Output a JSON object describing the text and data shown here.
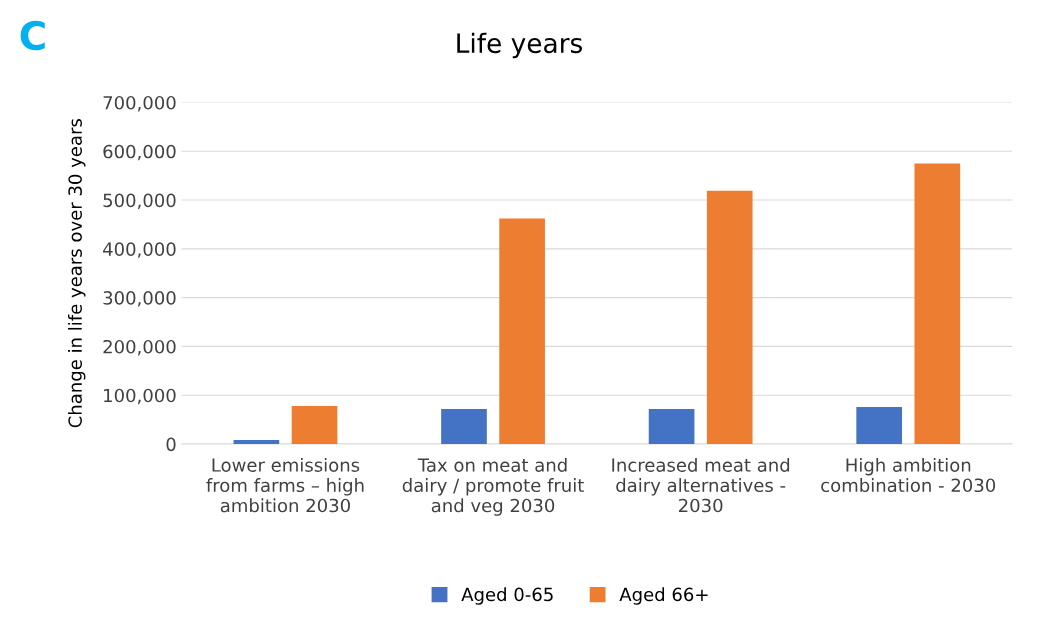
{
  "chart_data": {
    "type": "bar",
    "title": "Life years",
    "ylabel": "Change in life years over 30 years",
    "annotations": [
      "C"
    ],
    "categories": [
      "Lower emissions\nfrom farms – high\nambition 2030",
      "Tax on meat and\ndairy / promote fruit\nand veg 2030",
      "Increased meat and\ndairy alternatives -\n2030",
      "High ambition\ncombination - 2030"
    ],
    "series": [
      {
        "name": "Aged 0-65",
        "color": "#4472c4",
        "values": [
          8000,
          72000,
          72000,
          76000
        ]
      },
      {
        "name": "Aged 66+",
        "color": "#ed7d31",
        "values": [
          78000,
          462000,
          519000,
          575000
        ]
      }
    ],
    "ylim": [
      0,
      700000
    ],
    "yticks": [
      {
        "value": 0,
        "label": "0"
      },
      {
        "value": 100000,
        "label": "100,000"
      },
      {
        "value": 200000,
        "label": "200,000"
      },
      {
        "value": 300000,
        "label": "300,000"
      },
      {
        "value": 400000,
        "label": "400,000"
      },
      {
        "value": 500000,
        "label": "500,000"
      },
      {
        "value": 600000,
        "label": "600,000"
      },
      {
        "value": 700000,
        "label": "700,000"
      }
    ],
    "grid": "y",
    "legend": "bottom"
  }
}
